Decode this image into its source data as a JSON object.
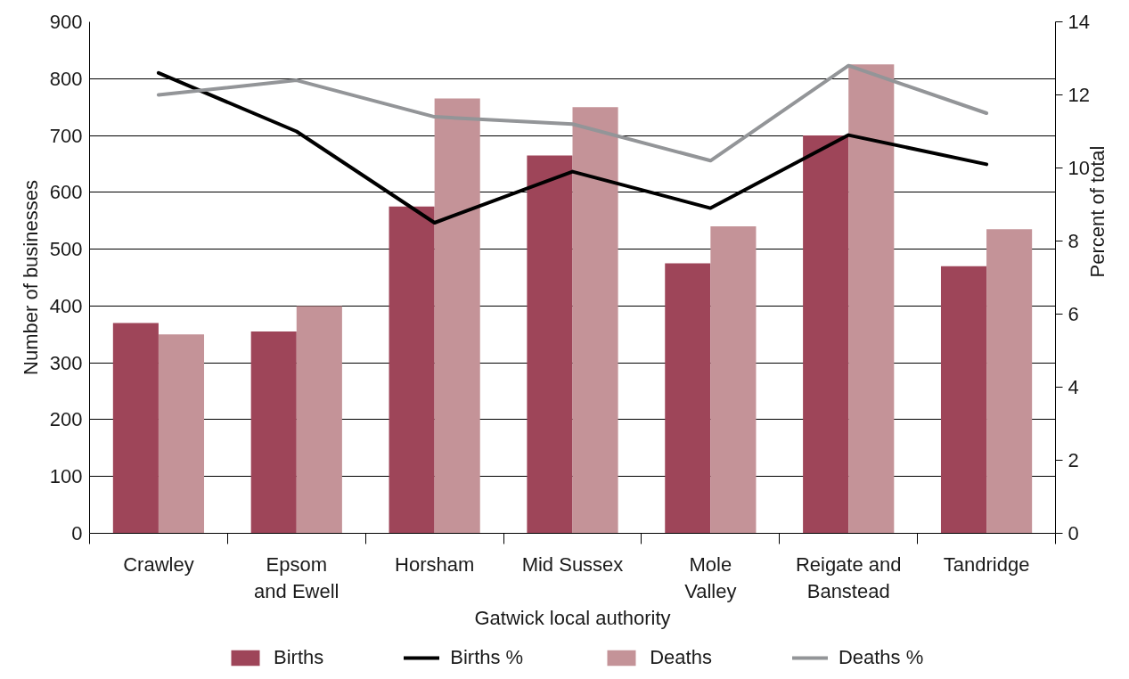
{
  "chart_data": {
    "type": "bar",
    "xlabel": "Gatwick local authority",
    "ylabel": "Number of businesses",
    "y2label": "Percent of total",
    "categories": [
      "Crawley",
      "Epsom and Ewell",
      "Horsham",
      "Mid Sussex",
      "Mole Valley",
      "Reigate and Banstead",
      "Tandridge"
    ],
    "series": [
      {
        "name": "Births",
        "type": "bar",
        "color": "#9e4559",
        "values": [
          370,
          355,
          575,
          665,
          475,
          700,
          470
        ]
      },
      {
        "name": "Births %",
        "type": "line",
        "axis": "y2",
        "color": "#000000",
        "values": [
          12.6,
          11.0,
          8.5,
          9.9,
          8.9,
          10.9,
          10.1
        ]
      },
      {
        "name": "Deaths",
        "type": "bar",
        "color": "#c49398",
        "values": [
          350,
          400,
          765,
          750,
          540,
          825,
          535
        ]
      },
      {
        "name": "Deaths %",
        "type": "line",
        "axis": "y2",
        "color": "#939598",
        "values": [
          12.0,
          12.4,
          11.4,
          11.2,
          10.2,
          12.8,
          11.5
        ]
      }
    ],
    "ylim": [
      0,
      900
    ],
    "yticks": [
      0,
      100,
      200,
      300,
      400,
      500,
      600,
      700,
      800,
      900
    ],
    "y2lim": [
      0,
      14
    ],
    "y2ticks": [
      0,
      2,
      4,
      6,
      8,
      10,
      12,
      14
    ],
    "grid": "y",
    "legend": "bottom",
    "line_style": "solid"
  }
}
